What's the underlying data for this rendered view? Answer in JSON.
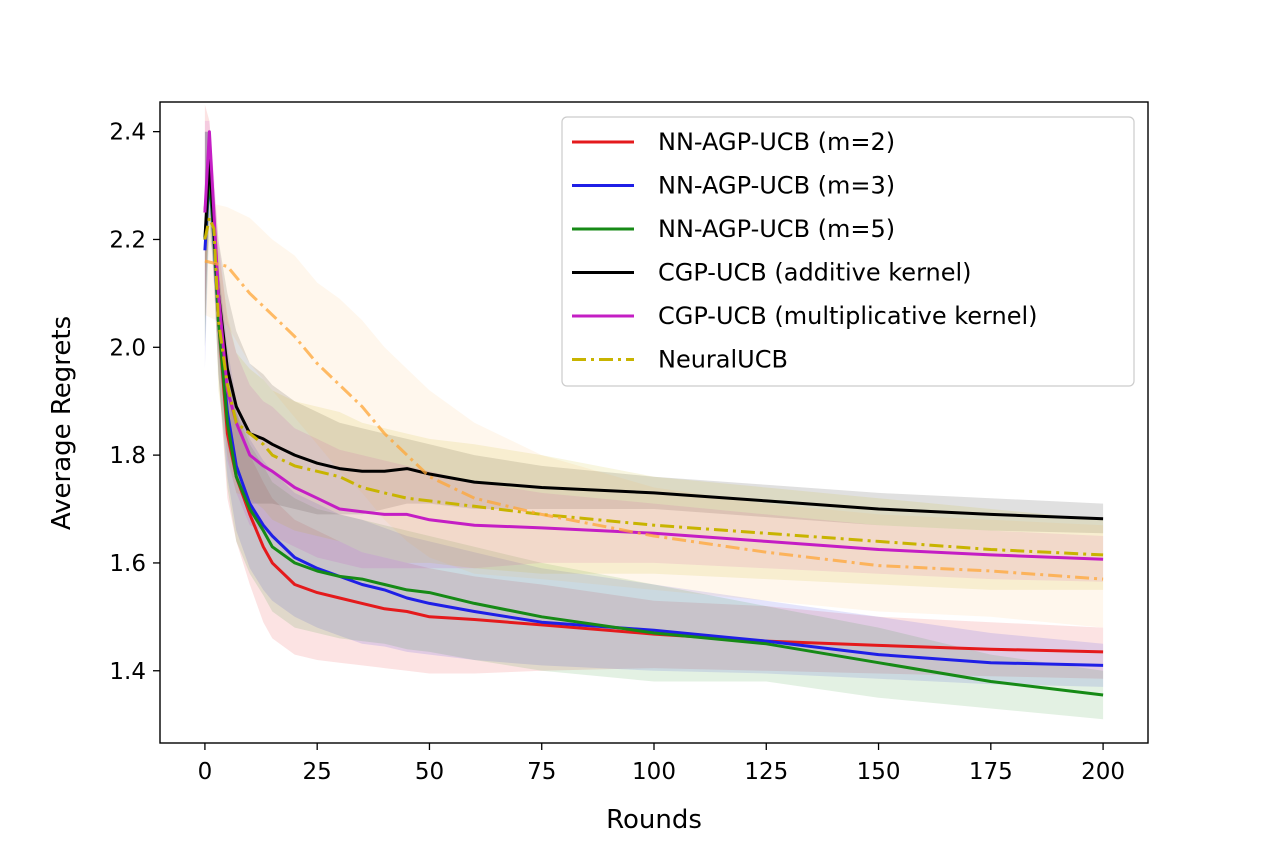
{
  "chart_data": {
    "type": "line",
    "title": "",
    "xlabel": "Rounds",
    "ylabel": "Average Regrets",
    "xlim": [
      -10,
      210
    ],
    "ylim": [
      1.266,
      2.455
    ],
    "xticks": [
      0,
      25,
      50,
      75,
      100,
      125,
      150,
      175,
      200
    ],
    "yticks": [
      1.4,
      1.6,
      1.8,
      2.0,
      2.2,
      2.4
    ],
    "ytick_labels": [
      "1.4",
      "1.6",
      "1.8",
      "2.0",
      "2.2",
      "2.4"
    ],
    "grid": false,
    "legend_position": "top-right",
    "series": [
      {
        "name": "NN-AGP-UCB (m=2)",
        "color": "#e41a1c",
        "line_style": "solid",
        "x": [
          0,
          1,
          2,
          3,
          5,
          7,
          10,
          13,
          15,
          20,
          25,
          30,
          35,
          40,
          45,
          50,
          60,
          75,
          100,
          125,
          150,
          175,
          200
        ],
        "y": [
          2.25,
          2.35,
          2.22,
          2.05,
          1.84,
          1.76,
          1.69,
          1.63,
          1.6,
          1.56,
          1.545,
          1.535,
          1.525,
          1.515,
          1.51,
          1.5,
          1.495,
          1.485,
          1.468,
          1.455,
          1.447,
          1.44,
          1.435
        ],
        "upper": [
          2.45,
          2.42,
          2.3,
          2.15,
          1.96,
          1.88,
          1.8,
          1.75,
          1.72,
          1.68,
          1.66,
          1.64,
          1.62,
          1.61,
          1.6,
          1.59,
          1.575,
          1.56,
          1.53,
          1.52,
          1.5,
          1.49,
          1.48
        ],
        "lower": [
          2.05,
          2.28,
          2.12,
          1.95,
          1.72,
          1.64,
          1.56,
          1.49,
          1.46,
          1.43,
          1.42,
          1.415,
          1.41,
          1.405,
          1.4,
          1.395,
          1.395,
          1.4,
          1.405,
          1.4,
          1.395,
          1.39,
          1.385
        ]
      },
      {
        "name": "NN-AGP-UCB (m=3)",
        "color": "#1f1fe6",
        "line_style": "solid",
        "x": [
          0,
          1,
          2,
          3,
          5,
          7,
          10,
          13,
          15,
          20,
          25,
          30,
          35,
          40,
          45,
          50,
          60,
          75,
          100,
          125,
          150,
          175,
          200
        ],
        "y": [
          2.18,
          2.32,
          2.2,
          2.05,
          1.88,
          1.78,
          1.71,
          1.67,
          1.65,
          1.61,
          1.59,
          1.575,
          1.56,
          1.55,
          1.535,
          1.525,
          1.51,
          1.49,
          1.475,
          1.455,
          1.43,
          1.415,
          1.41
        ],
        "upper": [
          2.4,
          2.4,
          2.28,
          2.15,
          2.0,
          1.9,
          1.83,
          1.79,
          1.77,
          1.73,
          1.71,
          1.69,
          1.68,
          1.665,
          1.65,
          1.64,
          1.62,
          1.59,
          1.56,
          1.53,
          1.5,
          1.47,
          1.45
        ],
        "lower": [
          1.96,
          2.24,
          2.12,
          1.95,
          1.76,
          1.66,
          1.59,
          1.55,
          1.53,
          1.5,
          1.48,
          1.465,
          1.45,
          1.445,
          1.435,
          1.43,
          1.42,
          1.41,
          1.4,
          1.395,
          1.385,
          1.375,
          1.37
        ]
      },
      {
        "name": "NN-AGP-UCB (m=5)",
        "color": "#168a16",
        "line_style": "solid",
        "x": [
          0,
          1,
          2,
          3,
          5,
          7,
          10,
          13,
          15,
          20,
          25,
          30,
          35,
          40,
          45,
          50,
          60,
          75,
          100,
          125,
          150,
          175,
          200
        ],
        "y": [
          2.2,
          2.32,
          2.21,
          2.05,
          1.86,
          1.76,
          1.7,
          1.66,
          1.63,
          1.6,
          1.585,
          1.575,
          1.57,
          1.56,
          1.55,
          1.545,
          1.525,
          1.5,
          1.47,
          1.45,
          1.415,
          1.38,
          1.355
        ],
        "upper": [
          2.4,
          2.4,
          2.29,
          2.15,
          1.98,
          1.88,
          1.82,
          1.78,
          1.75,
          1.72,
          1.7,
          1.69,
          1.68,
          1.67,
          1.66,
          1.65,
          1.63,
          1.6,
          1.56,
          1.52,
          1.48,
          1.43,
          1.4
        ],
        "lower": [
          2.0,
          2.24,
          2.13,
          1.95,
          1.74,
          1.64,
          1.58,
          1.54,
          1.51,
          1.48,
          1.47,
          1.46,
          1.455,
          1.45,
          1.44,
          1.435,
          1.42,
          1.4,
          1.38,
          1.38,
          1.35,
          1.33,
          1.31
        ]
      },
      {
        "name": "CGP-UCB (additive kernel)",
        "color": "#000000",
        "line_style": "solid",
        "x": [
          0,
          1,
          2,
          3,
          5,
          7,
          10,
          13,
          15,
          20,
          25,
          30,
          35,
          40,
          45,
          50,
          60,
          75,
          100,
          125,
          150,
          175,
          200
        ],
        "y": [
          2.2,
          2.35,
          2.22,
          2.1,
          1.96,
          1.89,
          1.84,
          1.83,
          1.82,
          1.8,
          1.785,
          1.775,
          1.77,
          1.77,
          1.775,
          1.765,
          1.75,
          1.74,
          1.73,
          1.715,
          1.7,
          1.69,
          1.682
        ],
        "upper": [
          2.4,
          2.4,
          2.3,
          2.2,
          2.1,
          2.03,
          1.97,
          1.95,
          1.93,
          1.9,
          1.88,
          1.86,
          1.85,
          1.84,
          1.83,
          1.82,
          1.8,
          1.78,
          1.76,
          1.745,
          1.73,
          1.72,
          1.71
        ],
        "lower": [
          2.0,
          2.3,
          2.14,
          2.0,
          1.82,
          1.75,
          1.71,
          1.71,
          1.71,
          1.7,
          1.69,
          1.69,
          1.69,
          1.7,
          1.71,
          1.71,
          1.7,
          1.7,
          1.7,
          1.685,
          1.67,
          1.66,
          1.655
        ]
      },
      {
        "name": "CGP-UCB (multiplicative kernel)",
        "color": "#c41ec4",
        "line_style": "solid",
        "x": [
          0,
          1,
          2,
          3,
          5,
          7,
          10,
          13,
          15,
          20,
          25,
          30,
          35,
          40,
          45,
          50,
          60,
          75,
          100,
          125,
          150,
          175,
          200
        ],
        "y": [
          2.25,
          2.4,
          2.25,
          2.1,
          1.92,
          1.86,
          1.8,
          1.78,
          1.77,
          1.74,
          1.72,
          1.7,
          1.695,
          1.69,
          1.69,
          1.68,
          1.67,
          1.665,
          1.655,
          1.64,
          1.625,
          1.615,
          1.607
        ],
        "upper": [
          2.42,
          2.42,
          2.32,
          2.2,
          2.05,
          1.99,
          1.93,
          1.9,
          1.89,
          1.85,
          1.83,
          1.81,
          1.8,
          1.79,
          1.78,
          1.77,
          1.75,
          1.73,
          1.71,
          1.69,
          1.67,
          1.66,
          1.65
        ],
        "lower": [
          2.08,
          2.38,
          2.18,
          2.0,
          1.79,
          1.73,
          1.67,
          1.66,
          1.65,
          1.63,
          1.61,
          1.6,
          1.59,
          1.59,
          1.59,
          1.59,
          1.59,
          1.6,
          1.6,
          1.59,
          1.58,
          1.57,
          1.565
        ]
      },
      {
        "name": "NeuralUCB",
        "color": "#c8b400",
        "line_style": "dashdot",
        "x": [
          0,
          1,
          2,
          3,
          5,
          7,
          10,
          13,
          15,
          20,
          25,
          30,
          35,
          40,
          45,
          50,
          60,
          75,
          100,
          125,
          150,
          175,
          200
        ],
        "y": [
          2.2,
          2.24,
          2.22,
          2.05,
          1.93,
          1.86,
          1.84,
          1.82,
          1.8,
          1.78,
          1.77,
          1.76,
          1.74,
          1.73,
          1.72,
          1.715,
          1.705,
          1.69,
          1.67,
          1.655,
          1.64,
          1.625,
          1.615
        ],
        "upper": [
          2.26,
          2.28,
          2.27,
          2.18,
          2.06,
          1.99,
          1.96,
          1.94,
          1.92,
          1.9,
          1.89,
          1.88,
          1.86,
          1.85,
          1.84,
          1.83,
          1.82,
          1.8,
          1.76,
          1.74,
          1.72,
          1.7,
          1.68
        ],
        "lower": [
          2.14,
          2.2,
          2.17,
          1.92,
          1.8,
          1.73,
          1.72,
          1.7,
          1.68,
          1.66,
          1.65,
          1.64,
          1.62,
          1.61,
          1.6,
          1.6,
          1.59,
          1.58,
          1.58,
          1.57,
          1.56,
          1.55,
          1.55
        ]
      },
      {
        "name": "",
        "color": "#ffa636",
        "line_style": "dashdot",
        "x": [
          0,
          5,
          10,
          15,
          20,
          25,
          30,
          35,
          40,
          45,
          50,
          60,
          75,
          100,
          125,
          150,
          175,
          200
        ],
        "y": [
          2.16,
          2.15,
          2.1,
          2.06,
          2.02,
          1.97,
          1.93,
          1.89,
          1.84,
          1.8,
          1.76,
          1.72,
          1.69,
          1.65,
          1.62,
          1.595,
          1.585,
          1.57
        ],
        "upper": [
          2.27,
          2.26,
          2.24,
          2.2,
          2.17,
          2.12,
          2.09,
          2.05,
          2.0,
          1.96,
          1.92,
          1.86,
          1.8,
          1.74,
          1.71,
          1.69,
          1.68,
          1.67
        ],
        "lower": [
          2.06,
          2.04,
          1.97,
          1.92,
          1.87,
          1.82,
          1.77,
          1.73,
          1.68,
          1.64,
          1.61,
          1.58,
          1.57,
          1.55,
          1.53,
          1.51,
          1.5,
          1.48
        ]
      }
    ]
  }
}
